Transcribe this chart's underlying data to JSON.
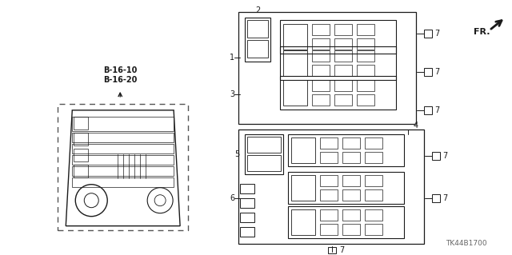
{
  "background_color": "#ffffff",
  "diagram_id": "TK44B1700",
  "line_color": "#1a1a1a",
  "gray": "#666666",
  "ref1": "B-16-10",
  "ref2": "B-16-20",
  "figsize": [
    6.4,
    3.19
  ],
  "dpi": 100
}
